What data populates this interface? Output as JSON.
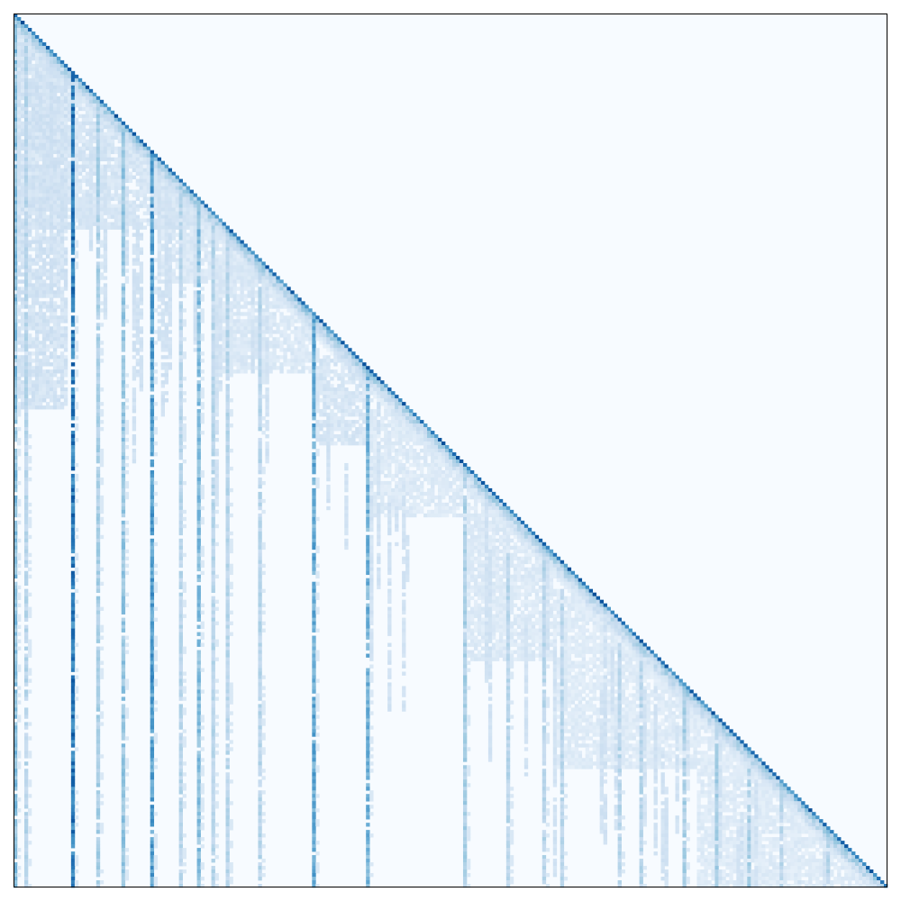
{
  "chart_data": {
    "type": "heatmap",
    "title": "",
    "xlabel": "",
    "ylabel": "",
    "x_ticks": [],
    "y_ticks": [],
    "grid": false,
    "legend": "none",
    "colorbar": false,
    "colormap": "Blues",
    "lower_triangular": true,
    "matrix_size": 243,
    "value_range": [
      0,
      1
    ],
    "colors": {
      "empty": "#f7fbff",
      "low": "#deebf7",
      "light": "#c6dbef",
      "mid": "#6baed6",
      "high": "#2171b5",
      "max": "#08306b",
      "frame": "#000000"
    },
    "column_stripes": [
      {
        "column": 0,
        "start_row": 0,
        "intensity": 0.45
      },
      {
        "column": 3,
        "start_row": 5,
        "intensity": 0.3
      },
      {
        "column": 16,
        "start_row": 16,
        "intensity": 0.75
      },
      {
        "column": 23,
        "start_row": 23,
        "intensity": 0.35
      },
      {
        "column": 30,
        "start_row": 30,
        "intensity": 0.4
      },
      {
        "column": 38,
        "start_row": 38,
        "intensity": 0.6
      },
      {
        "column": 46,
        "start_row": 50,
        "intensity": 0.3
      },
      {
        "column": 51,
        "start_row": 51,
        "intensity": 0.45
      },
      {
        "column": 55,
        "start_row": 58,
        "intensity": 0.3
      },
      {
        "column": 59,
        "start_row": 60,
        "intensity": 0.3
      },
      {
        "column": 68,
        "start_row": 68,
        "intensity": 0.3
      },
      {
        "column": 83,
        "start_row": 83,
        "intensity": 0.55
      },
      {
        "column": 98,
        "start_row": 98,
        "intensity": 0.5
      },
      {
        "column": 125,
        "start_row": 125,
        "intensity": 0.35
      },
      {
        "column": 137,
        "start_row": 150,
        "intensity": 0.3
      },
      {
        "column": 147,
        "start_row": 150,
        "intensity": 0.3
      },
      {
        "column": 152,
        "start_row": 160,
        "intensity": 0.3
      },
      {
        "column": 168,
        "start_row": 175,
        "intensity": 0.3
      },
      {
        "column": 174,
        "start_row": 180,
        "intensity": 0.3
      },
      {
        "column": 186,
        "start_row": 186,
        "intensity": 0.35
      },
      {
        "column": 195,
        "start_row": 195,
        "intensity": 0.35
      },
      {
        "column": 204,
        "start_row": 210,
        "intensity": 0.35
      },
      {
        "column": 213,
        "start_row": 213,
        "intensity": 0.3
      },
      {
        "column": 226,
        "start_row": 226,
        "intensity": 0.3
      }
    ],
    "dense_blocks": [
      {
        "rows": [
          0,
          110
        ],
        "cols": [
          0,
          15
        ],
        "intensity": 0.18
      },
      {
        "rows": [
          0,
          60
        ],
        "cols": [
          0,
          50
        ],
        "intensity": 0.16
      },
      {
        "rows": [
          45,
          75
        ],
        "cols": [
          40,
          72
        ],
        "intensity": 0.14
      },
      {
        "rows": [
          68,
          100
        ],
        "cols": [
          55,
          84
        ],
        "intensity": 0.14
      },
      {
        "rows": [
          95,
          120
        ],
        "cols": [
          84,
          99
        ],
        "intensity": 0.16
      },
      {
        "rows": [
          110,
          140
        ],
        "cols": [
          99,
          125
        ],
        "intensity": 0.13
      },
      {
        "rows": [
          130,
          180
        ],
        "cols": [
          125,
          150
        ],
        "intensity": 0.13
      },
      {
        "rows": [
          160,
          210
        ],
        "cols": [
          150,
          190
        ],
        "intensity": 0.12
      },
      {
        "rows": [
          195,
          243
        ],
        "cols": [
          190,
          243
        ],
        "intensity": 0.12
      }
    ]
  }
}
